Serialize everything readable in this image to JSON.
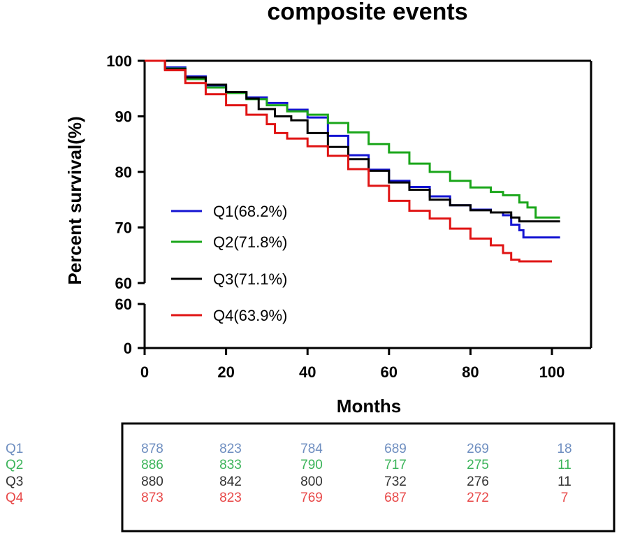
{
  "chart_data": {
    "type": "line",
    "title": "composite events",
    "xlabel": "Months",
    "ylabel": "Percent survival(%)",
    "xlim": [
      0,
      105
    ],
    "xticks": [
      0,
      20,
      40,
      60,
      80,
      100
    ],
    "xtick_labels": [
      "0",
      "20",
      "40",
      "60",
      "80",
      "100"
    ],
    "ylim_upper": [
      60,
      100
    ],
    "ylim_lower": [
      0,
      60
    ],
    "yticks_upper": [
      60,
      70,
      80,
      90,
      100
    ],
    "ytick_labels_upper": [
      "60",
      "70",
      "80",
      "90",
      "100"
    ],
    "yticks_lower": [
      0,
      60
    ],
    "ytick_labels_lower": [
      "0",
      "60"
    ],
    "grid": false,
    "legend_position": "center-left",
    "series": [
      {
        "name": "Q1(68.2%)",
        "color": "#1414d2",
        "points": [
          [
            0,
            100
          ],
          [
            5,
            98.8
          ],
          [
            10,
            97.2
          ],
          [
            15,
            95.6
          ],
          [
            20,
            94.3
          ],
          [
            25,
            93.4
          ],
          [
            30,
            92.4
          ],
          [
            35,
            91.2
          ],
          [
            40,
            89.8
          ],
          [
            45,
            86.5
          ],
          [
            50,
            83.0
          ],
          [
            55,
            80.4
          ],
          [
            60,
            78.4
          ],
          [
            65,
            77.3
          ],
          [
            70,
            75.6
          ],
          [
            75,
            74.0
          ],
          [
            80,
            73.2
          ],
          [
            85,
            72.7
          ],
          [
            88,
            72.2
          ],
          [
            90,
            70.5
          ],
          [
            92,
            69.5
          ],
          [
            93,
            68.2
          ],
          [
            102,
            68.2
          ]
        ]
      },
      {
        "name": "Q2(71.8%)",
        "color": "#1aa61a",
        "points": [
          [
            0,
            100
          ],
          [
            5,
            98.6
          ],
          [
            10,
            96.7
          ],
          [
            15,
            95.2
          ],
          [
            20,
            94.2
          ],
          [
            25,
            93.1
          ],
          [
            30,
            92.0
          ],
          [
            35,
            90.9
          ],
          [
            40,
            90.3
          ],
          [
            45,
            88.8
          ],
          [
            50,
            87.1
          ],
          [
            55,
            85.0
          ],
          [
            60,
            83.5
          ],
          [
            65,
            81.5
          ],
          [
            70,
            80.0
          ],
          [
            75,
            78.4
          ],
          [
            80,
            77.2
          ],
          [
            85,
            76.4
          ],
          [
            88,
            75.8
          ],
          [
            92,
            74.5
          ],
          [
            94,
            73.6
          ],
          [
            96,
            71.8
          ],
          [
            102,
            71.8
          ]
        ]
      },
      {
        "name": "Q3(71.1%)",
        "color": "#000000",
        "points": [
          [
            0,
            100
          ],
          [
            5,
            98.5
          ],
          [
            10,
            97.0
          ],
          [
            15,
            95.7
          ],
          [
            20,
            94.4
          ],
          [
            25,
            93.2
          ],
          [
            28,
            91.3
          ],
          [
            32,
            90.0
          ],
          [
            36,
            89.3
          ],
          [
            40,
            87.0
          ],
          [
            45,
            84.5
          ],
          [
            50,
            82.3
          ],
          [
            55,
            80.2
          ],
          [
            60,
            78.1
          ],
          [
            65,
            76.8
          ],
          [
            70,
            75.0
          ],
          [
            75,
            74.0
          ],
          [
            80,
            73.1
          ],
          [
            85,
            72.7
          ],
          [
            90,
            71.8
          ],
          [
            92,
            71.1
          ],
          [
            102,
            71.1
          ]
        ]
      },
      {
        "name": "Q4(63.9%)",
        "color": "#e01414",
        "points": [
          [
            0,
            100
          ],
          [
            5,
            98.3
          ],
          [
            10,
            96.0
          ],
          [
            15,
            94.0
          ],
          [
            20,
            92.0
          ],
          [
            25,
            90.3
          ],
          [
            30,
            88.6
          ],
          [
            32,
            87.0
          ],
          [
            35,
            86.0
          ],
          [
            40,
            84.6
          ],
          [
            45,
            82.9
          ],
          [
            50,
            80.5
          ],
          [
            55,
            77.5
          ],
          [
            60,
            74.8
          ],
          [
            65,
            73.0
          ],
          [
            70,
            71.6
          ],
          [
            75,
            69.8
          ],
          [
            80,
            68.0
          ],
          [
            85,
            66.8
          ],
          [
            88,
            65.4
          ],
          [
            90,
            64.2
          ],
          [
            92,
            63.9
          ],
          [
            100,
            63.9
          ]
        ]
      }
    ]
  },
  "risk_table": {
    "rows": [
      {
        "label": "Q1",
        "color": "#6e8ec0",
        "values": [
          "878",
          "823",
          "784",
          "689",
          "269",
          "18"
        ]
      },
      {
        "label": "Q2",
        "color": "#3cb45a",
        "values": [
          "886",
          "833",
          "790",
          "717",
          "275",
          "11"
        ]
      },
      {
        "label": "Q3",
        "color": "#333333",
        "values": [
          "880",
          "842",
          "800",
          "732",
          "276",
          "11"
        ]
      },
      {
        "label": "Q4",
        "color": "#e84848",
        "values": [
          "873",
          "823",
          "769",
          "687",
          "272",
          "7"
        ]
      }
    ]
  }
}
